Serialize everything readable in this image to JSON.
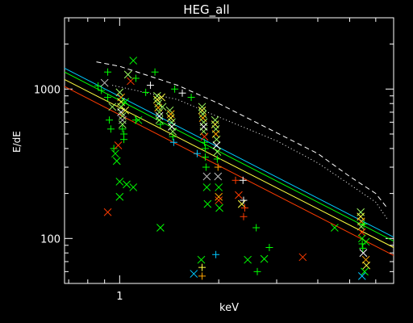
{
  "chart_data": {
    "type": "scatter",
    "title": "HEG_all",
    "xlabel": "keV",
    "ylabel": "E/dE",
    "xscale": "log",
    "yscale": "log",
    "xlim": [
      0.68,
      6.8
    ],
    "ylim": [
      50,
      3000
    ],
    "x_tick_labels": [
      "1"
    ],
    "y_tick_labels": [
      "100",
      "1000"
    ],
    "background": "#000000",
    "axis_color": "#ffffff",
    "colors": {
      "green": "#00ff00",
      "cyan": "#00c8ff",
      "orange": "#ffa500",
      "red": "#ff3c00",
      "white": "#ffffff",
      "lightgreen": "#a0ff60",
      "yellow": "#ffff40",
      "gray": "#bbbbbb"
    },
    "lines": [
      {
        "style": "dashed",
        "color": "white",
        "x": [
          0.85,
          1.0,
          1.5,
          2.0,
          3.0,
          4.0,
          5.0,
          6.0,
          6.5
        ],
        "y": [
          1520,
          1420,
          1060,
          800,
          510,
          370,
          260,
          200,
          160
        ]
      },
      {
        "style": "dotted",
        "color": "white",
        "x": [
          0.95,
          1.5,
          2.0,
          3.0,
          4.0,
          5.0,
          6.0,
          6.5
        ],
        "y": [
          1060,
          850,
          650,
          450,
          320,
          230,
          175,
          135
        ]
      },
      {
        "style": "solid",
        "color": "cyan",
        "x": [
          0.68,
          6.8
        ],
        "y": [
          1380,
          102
        ]
      },
      {
        "style": "solid",
        "color": "green",
        "x": [
          0.68,
          6.8
        ],
        "y": [
          1300,
          96
        ]
      },
      {
        "style": "solid",
        "color": "yellow",
        "x": [
          0.68,
          6.8
        ],
        "y": [
          1160,
          87
        ]
      },
      {
        "style": "solid",
        "color": "red",
        "x": [
          0.68,
          6.8
        ],
        "y": [
          1040,
          77
        ]
      }
    ],
    "points": [
      {
        "x": 0.86,
        "y": 1050,
        "m": "plus",
        "c": "green"
      },
      {
        "x": 0.88,
        "y": 980,
        "m": "plus",
        "c": "green"
      },
      {
        "x": 0.9,
        "y": 1100,
        "m": "cross",
        "c": "gray"
      },
      {
        "x": 0.92,
        "y": 1300,
        "m": "plus",
        "c": "green"
      },
      {
        "x": 0.92,
        "y": 880,
        "m": "plus",
        "c": "green"
      },
      {
        "x": 0.93,
        "y": 620,
        "m": "plus",
        "c": "green"
      },
      {
        "x": 0.94,
        "y": 540,
        "m": "plus",
        "c": "green"
      },
      {
        "x": 0.95,
        "y": 760,
        "m": "cross",
        "c": "lightgreen"
      },
      {
        "x": 0.96,
        "y": 400,
        "m": "plus",
        "c": "green"
      },
      {
        "x": 0.97,
        "y": 370,
        "m": "cross",
        "c": "green"
      },
      {
        "x": 0.98,
        "y": 330,
        "m": "cross",
        "c": "green"
      },
      {
        "x": 0.99,
        "y": 420,
        "m": "cross",
        "c": "red"
      },
      {
        "x": 0.92,
        "y": 150,
        "m": "cross",
        "c": "red"
      },
      {
        "x": 1.0,
        "y": 240,
        "m": "cross",
        "c": "green"
      },
      {
        "x": 1.0,
        "y": 190,
        "m": "cross",
        "c": "green"
      },
      {
        "x": 1.0,
        "y": 950,
        "m": "cross",
        "c": "lightgreen"
      },
      {
        "x": 1.01,
        "y": 880,
        "m": "cross",
        "c": "orange"
      },
      {
        "x": 1.01,
        "y": 820,
        "m": "cross",
        "c": "yellow"
      },
      {
        "x": 1.01,
        "y": 760,
        "m": "cross",
        "c": "lightgreen"
      },
      {
        "x": 1.01,
        "y": 700,
        "m": "cross",
        "c": "white"
      },
      {
        "x": 1.02,
        "y": 660,
        "m": "cross",
        "c": "lightgreen"
      },
      {
        "x": 1.02,
        "y": 620,
        "m": "cross",
        "c": "gray"
      },
      {
        "x": 1.02,
        "y": 580,
        "m": "cross",
        "c": "lightgreen"
      },
      {
        "x": 1.02,
        "y": 540,
        "m": "plus",
        "c": "green"
      },
      {
        "x": 1.03,
        "y": 500,
        "m": "plus",
        "c": "green"
      },
      {
        "x": 1.03,
        "y": 460,
        "m": "plus",
        "c": "green"
      },
      {
        "x": 1.04,
        "y": 720,
        "m": "cross",
        "c": "yellow"
      },
      {
        "x": 1.04,
        "y": 820,
        "m": "cross",
        "c": "green"
      },
      {
        "x": 1.05,
        "y": 230,
        "m": "cross",
        "c": "green"
      },
      {
        "x": 1.06,
        "y": 1250,
        "m": "cross",
        "c": "lightgreen"
      },
      {
        "x": 1.08,
        "y": 1130,
        "m": "cross",
        "c": "red"
      },
      {
        "x": 1.1,
        "y": 1550,
        "m": "cross",
        "c": "green"
      },
      {
        "x": 1.1,
        "y": 220,
        "m": "cross",
        "c": "green"
      },
      {
        "x": 1.12,
        "y": 1180,
        "m": "plus",
        "c": "green"
      },
      {
        "x": 1.12,
        "y": 620,
        "m": "plus",
        "c": "green"
      },
      {
        "x": 1.14,
        "y": 620,
        "m": "cross",
        "c": "green"
      },
      {
        "x": 1.2,
        "y": 950,
        "m": "plus",
        "c": "green"
      },
      {
        "x": 1.24,
        "y": 1060,
        "m": "plus",
        "c": "white"
      },
      {
        "x": 1.28,
        "y": 1300,
        "m": "plus",
        "c": "green"
      },
      {
        "x": 1.3,
        "y": 900,
        "m": "cross",
        "c": "lightgreen"
      },
      {
        "x": 1.3,
        "y": 850,
        "m": "cross",
        "c": "yellow"
      },
      {
        "x": 1.31,
        "y": 800,
        "m": "cross",
        "c": "lightgreen"
      },
      {
        "x": 1.31,
        "y": 750,
        "m": "cross",
        "c": "orange"
      },
      {
        "x": 1.32,
        "y": 700,
        "m": "cross",
        "c": "lightgreen"
      },
      {
        "x": 1.32,
        "y": 660,
        "m": "cross",
        "c": "white"
      },
      {
        "x": 1.32,
        "y": 620,
        "m": "cross",
        "c": "lightgreen"
      },
      {
        "x": 1.33,
        "y": 580,
        "m": "plus",
        "c": "green"
      },
      {
        "x": 1.34,
        "y": 880,
        "m": "cross",
        "c": "yellow"
      },
      {
        "x": 1.35,
        "y": 760,
        "m": "cross",
        "c": "lightgreen"
      },
      {
        "x": 1.33,
        "y": 118,
        "m": "cross",
        "c": "green"
      },
      {
        "x": 1.42,
        "y": 720,
        "m": "cross",
        "c": "lightgreen"
      },
      {
        "x": 1.43,
        "y": 680,
        "m": "cross",
        "c": "orange"
      },
      {
        "x": 1.43,
        "y": 640,
        "m": "cross",
        "c": "yellow"
      },
      {
        "x": 1.44,
        "y": 600,
        "m": "cross",
        "c": "lightgreen"
      },
      {
        "x": 1.44,
        "y": 560,
        "m": "cross",
        "c": "white"
      },
      {
        "x": 1.45,
        "y": 520,
        "m": "cross",
        "c": "lightgreen"
      },
      {
        "x": 1.45,
        "y": 480,
        "m": "plus",
        "c": "green"
      },
      {
        "x": 1.46,
        "y": 440,
        "m": "plus",
        "c": "cyan"
      },
      {
        "x": 1.47,
        "y": 1000,
        "m": "plus",
        "c": "green"
      },
      {
        "x": 1.55,
        "y": 940,
        "m": "plus",
        "c": "white"
      },
      {
        "x": 1.65,
        "y": 880,
        "m": "plus",
        "c": "green"
      },
      {
        "x": 1.72,
        "y": 370,
        "m": "plus",
        "c": "cyan"
      },
      {
        "x": 1.78,
        "y": 760,
        "m": "cross",
        "c": "lightgreen"
      },
      {
        "x": 1.78,
        "y": 720,
        "m": "cross",
        "c": "yellow"
      },
      {
        "x": 1.79,
        "y": 680,
        "m": "cross",
        "c": "lightgreen"
      },
      {
        "x": 1.79,
        "y": 640,
        "m": "cross",
        "c": "orange"
      },
      {
        "x": 1.8,
        "y": 600,
        "m": "cross",
        "c": "lightgreen"
      },
      {
        "x": 1.8,
        "y": 560,
        "m": "cross",
        "c": "white"
      },
      {
        "x": 1.8,
        "y": 520,
        "m": "cross",
        "c": "lightgreen"
      },
      {
        "x": 1.81,
        "y": 480,
        "m": "cross",
        "c": "red"
      },
      {
        "x": 1.81,
        "y": 440,
        "m": "plus",
        "c": "green"
      },
      {
        "x": 1.82,
        "y": 400,
        "m": "plus",
        "c": "green"
      },
      {
        "x": 1.82,
        "y": 350,
        "m": "plus",
        "c": "green"
      },
      {
        "x": 1.83,
        "y": 300,
        "m": "plus",
        "c": "green"
      },
      {
        "x": 1.84,
        "y": 260,
        "m": "cross",
        "c": "gray"
      },
      {
        "x": 1.84,
        "y": 220,
        "m": "cross",
        "c": "green"
      },
      {
        "x": 1.85,
        "y": 170,
        "m": "cross",
        "c": "green"
      },
      {
        "x": 1.77,
        "y": 72,
        "m": "cross",
        "c": "green"
      },
      {
        "x": 1.78,
        "y": 64,
        "m": "plus",
        "c": "yellow"
      },
      {
        "x": 1.78,
        "y": 56,
        "m": "plus",
        "c": "orange"
      },
      {
        "x": 1.95,
        "y": 620,
        "m": "cross",
        "c": "lightgreen"
      },
      {
        "x": 1.95,
        "y": 580,
        "m": "cross",
        "c": "yellow"
      },
      {
        "x": 1.96,
        "y": 540,
        "m": "cross",
        "c": "lightgreen"
      },
      {
        "x": 1.96,
        "y": 500,
        "m": "cross",
        "c": "orange"
      },
      {
        "x": 1.97,
        "y": 460,
        "m": "cross",
        "c": "lightgreen"
      },
      {
        "x": 1.97,
        "y": 420,
        "m": "cross",
        "c": "white"
      },
      {
        "x": 1.98,
        "y": 380,
        "m": "cross",
        "c": "lightgreen"
      },
      {
        "x": 1.98,
        "y": 340,
        "m": "plus",
        "c": "green"
      },
      {
        "x": 1.99,
        "y": 300,
        "m": "plus",
        "c": "orange"
      },
      {
        "x": 1.99,
        "y": 260,
        "m": "cross",
        "c": "gray"
      },
      {
        "x": 2.0,
        "y": 220,
        "m": "cross",
        "c": "green"
      },
      {
        "x": 2.0,
        "y": 190,
        "m": "cross",
        "c": "orange"
      },
      {
        "x": 2.0,
        "y": 180,
        "m": "cross",
        "c": "red"
      },
      {
        "x": 2.01,
        "y": 160,
        "m": "cross",
        "c": "green"
      },
      {
        "x": 1.96,
        "y": 78,
        "m": "plus",
        "c": "cyan"
      },
      {
        "x": 1.68,
        "y": 58,
        "m": "cross",
        "c": "cyan"
      },
      {
        "x": 2.25,
        "y": 245,
        "m": "plus",
        "c": "red"
      },
      {
        "x": 2.3,
        "y": 195,
        "m": "cross",
        "c": "red"
      },
      {
        "x": 2.35,
        "y": 170,
        "m": "cross",
        "c": "yellow"
      },
      {
        "x": 2.37,
        "y": 245,
        "m": "plus",
        "c": "white"
      },
      {
        "x": 2.38,
        "y": 180,
        "m": "plus",
        "c": "white"
      },
      {
        "x": 2.4,
        "y": 160,
        "m": "plus",
        "c": "red"
      },
      {
        "x": 2.38,
        "y": 140,
        "m": "plus",
        "c": "red"
      },
      {
        "x": 2.45,
        "y": 72,
        "m": "cross",
        "c": "green"
      },
      {
        "x": 2.6,
        "y": 118,
        "m": "plus",
        "c": "green"
      },
      {
        "x": 2.62,
        "y": 60,
        "m": "plus",
        "c": "green"
      },
      {
        "x": 2.85,
        "y": 87,
        "m": "plus",
        "c": "green"
      },
      {
        "x": 2.75,
        "y": 73,
        "m": "cross",
        "c": "green"
      },
      {
        "x": 3.6,
        "y": 75,
        "m": "cross",
        "c": "red"
      },
      {
        "x": 4.5,
        "y": 118,
        "m": "cross",
        "c": "green"
      },
      {
        "x": 5.4,
        "y": 150,
        "m": "cross",
        "c": "lightgreen"
      },
      {
        "x": 5.4,
        "y": 140,
        "m": "cross",
        "c": "yellow"
      },
      {
        "x": 5.42,
        "y": 130,
        "m": "cross",
        "c": "orange"
      },
      {
        "x": 5.42,
        "y": 120,
        "m": "cross",
        "c": "lightgreen"
      },
      {
        "x": 5.44,
        "y": 110,
        "m": "cross",
        "c": "red"
      },
      {
        "x": 5.45,
        "y": 100,
        "m": "cross",
        "c": "green"
      },
      {
        "x": 5.46,
        "y": 92,
        "m": "plus",
        "c": "green"
      },
      {
        "x": 5.48,
        "y": 86,
        "m": "plus",
        "c": "green"
      },
      {
        "x": 5.5,
        "y": 80,
        "m": "cross",
        "c": "white"
      },
      {
        "x": 5.6,
        "y": 72,
        "m": "cross",
        "c": "orange"
      },
      {
        "x": 5.62,
        "y": 66,
        "m": "cross",
        "c": "yellow"
      },
      {
        "x": 5.55,
        "y": 60,
        "m": "cross",
        "c": "green"
      },
      {
        "x": 5.45,
        "y": 56,
        "m": "cross",
        "c": "cyan"
      },
      {
        "x": 5.52,
        "y": 125,
        "m": "plus",
        "c": "green"
      },
      {
        "x": 5.6,
        "y": 95,
        "m": "cross",
        "c": "green"
      }
    ]
  }
}
